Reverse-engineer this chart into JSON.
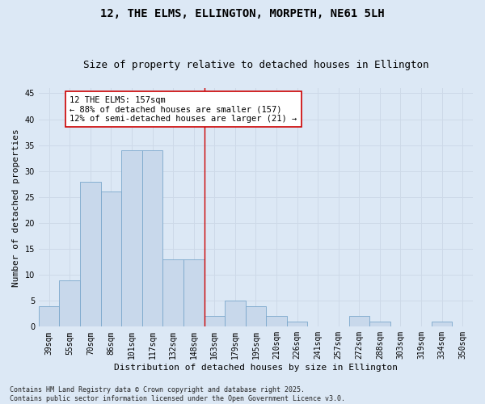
{
  "title": "12, THE ELMS, ELLINGTON, MORPETH, NE61 5LH",
  "subtitle": "Size of property relative to detached houses in Ellington",
  "xlabel": "Distribution of detached houses by size in Ellington",
  "ylabel": "Number of detached properties",
  "bar_labels": [
    "39sqm",
    "55sqm",
    "70sqm",
    "86sqm",
    "101sqm",
    "117sqm",
    "132sqm",
    "148sqm",
    "163sqm",
    "179sqm",
    "195sqm",
    "210sqm",
    "226sqm",
    "241sqm",
    "257sqm",
    "272sqm",
    "288sqm",
    "303sqm",
    "319sqm",
    "334sqm",
    "350sqm"
  ],
  "bar_values": [
    4,
    9,
    28,
    26,
    34,
    34,
    13,
    13,
    2,
    5,
    4,
    2,
    1,
    0,
    0,
    2,
    1,
    0,
    0,
    1,
    0
  ],
  "bar_color": "#c8d8eb",
  "bar_edge_color": "#7aa7cc",
  "grid_color": "#cdd9e8",
  "background_color": "#dce8f5",
  "vline_x_idx": 7.5,
  "vline_color": "#cc0000",
  "annotation_text": "12 THE ELMS: 157sqm\n← 88% of detached houses are smaller (157)\n12% of semi-detached houses are larger (21) →",
  "annotation_box_facecolor": "#ffffff",
  "annotation_box_edgecolor": "#cc0000",
  "ylim": [
    0,
    46
  ],
  "yticks": [
    0,
    5,
    10,
    15,
    20,
    25,
    30,
    35,
    40,
    45
  ],
  "title_fontsize": 10,
  "subtitle_fontsize": 9,
  "xlabel_fontsize": 8,
  "ylabel_fontsize": 8,
  "tick_fontsize": 7,
  "annotation_fontsize": 7.5,
  "footnote_fontsize": 6,
  "footnote": "Contains HM Land Registry data © Crown copyright and database right 2025.\nContains public sector information licensed under the Open Government Licence v3.0."
}
